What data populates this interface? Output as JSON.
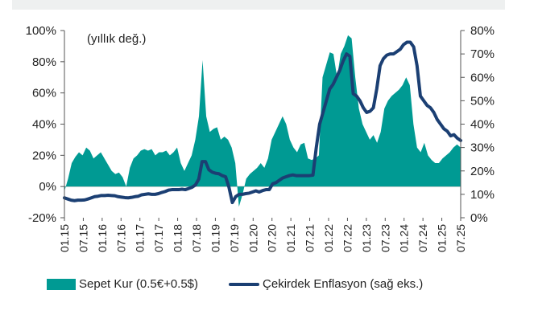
{
  "chart_data": {
    "type": "area+line",
    "annotation": "(yıllık değ.)",
    "left_axis": {
      "ticks": [
        "100%",
        "80%",
        "60%",
        "40%",
        "20%",
        "0%",
        "-20%"
      ],
      "range": [
        -20,
        100
      ]
    },
    "right_axis": {
      "ticks": [
        "80%",
        "70%",
        "60%",
        "50%",
        "40%",
        "30%",
        "20%",
        "10%",
        "0%"
      ],
      "range": [
        0,
        80
      ]
    },
    "x_tick_labels": [
      "01.15",
      "07.15",
      "01.16",
      "07.16",
      "01.17",
      "07.17",
      "01.18",
      "07.18",
      "01.19",
      "07.19",
      "01.20",
      "07.20",
      "01.21",
      "07.21",
      "01.22",
      "07.22",
      "01.23",
      "07.23",
      "01.24",
      "07.24",
      "01.25",
      "07.25"
    ],
    "series": [
      {
        "name": "Sepet Kur (0.5€+0.5$)",
        "axis": "left",
        "color": "#009a93",
        "values": [
          -3,
          5,
          15,
          19,
          22,
          20,
          25,
          23,
          18,
          20,
          22,
          18,
          14,
          10,
          8,
          9,
          6,
          0,
          12,
          18,
          20,
          23,
          24,
          23,
          24,
          20,
          22,
          22,
          23,
          20,
          22,
          25,
          15,
          10,
          15,
          20,
          30,
          45,
          81,
          45,
          35,
          37,
          38,
          30,
          32,
          30,
          25,
          15,
          -13,
          -5,
          5,
          8,
          10,
          12,
          15,
          12,
          18,
          30,
          35,
          40,
          45,
          40,
          30,
          25,
          22,
          27,
          28,
          18,
          17,
          18,
          20,
          70,
          78,
          86,
          85,
          70,
          85,
          90,
          97,
          95,
          70,
          50,
          40,
          35,
          30,
          33,
          28,
          35,
          50,
          55,
          58,
          60,
          62,
          65,
          70,
          65,
          40,
          25,
          22,
          28,
          20,
          17,
          15,
          15,
          18,
          20,
          22,
          25,
          27,
          25
        ]
      },
      {
        "name": "Çekirdek Enflasyon (sağ eks.)",
        "axis": "right",
        "color": "#1b3f73",
        "values": [
          8.5,
          8,
          7.5,
          7.3,
          7.5,
          7.5,
          7.6,
          8,
          8.5,
          9,
          9.2,
          9.5,
          9.5,
          9.6,
          9.5,
          9.4,
          9,
          8.8,
          8.6,
          8.5,
          8.7,
          9,
          9.2,
          9.8,
          10,
          10.2,
          10,
          10,
          10.3,
          10.8,
          11.2,
          11.8,
          12,
          12,
          12,
          12.2,
          12,
          12.5,
          13,
          14,
          16.5,
          24,
          24,
          20.5,
          19.5,
          19,
          18.8,
          18,
          17.5,
          13,
          6.5,
          9,
          10,
          10,
          10.3,
          10.5,
          11,
          11.5,
          11,
          11.6,
          12,
          12,
          14.5,
          15,
          16,
          17,
          17.5,
          18,
          18.3,
          18,
          18,
          18,
          18,
          18,
          18.2,
          30,
          40,
          45,
          50,
          55,
          57,
          60,
          63,
          67,
          70,
          69,
          53,
          52,
          50,
          47,
          45,
          45.5,
          47,
          55,
          65,
          68,
          69.5,
          70,
          70,
          71,
          72,
          74,
          75,
          75,
          73,
          65,
          52,
          50,
          48,
          47,
          45,
          42,
          40,
          38,
          37,
          35,
          35.5,
          34,
          33
        ]
      }
    ]
  },
  "legend": {
    "area_label": "Sepet Kur (0.5€+0.5$)",
    "line_label": "Çekirdek Enflasyon (sağ eks.)"
  }
}
